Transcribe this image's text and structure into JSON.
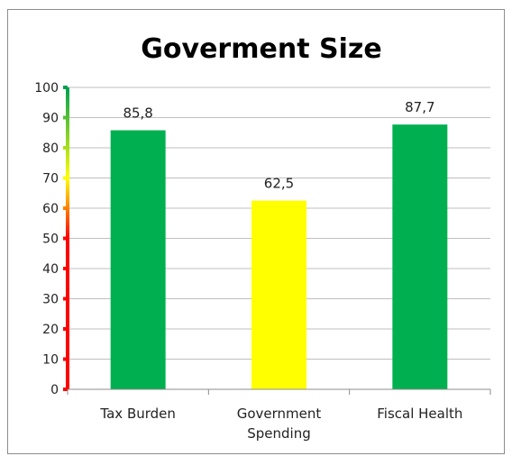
{
  "chart_data": {
    "type": "bar",
    "title": "Goverment Size",
    "xlabel": "",
    "ylabel": "",
    "categories": [
      [
        "Tax Burden"
      ],
      [
        "Government",
        "Spending"
      ],
      [
        "Fiscal Health"
      ]
    ],
    "values": [
      85.8,
      62.5,
      87.7
    ],
    "data_labels": [
      "85,8",
      "62,5",
      "87,7"
    ],
    "bar_colors": [
      "#00b050",
      "#ffff00",
      "#00b050"
    ],
    "ylim": [
      0,
      100
    ],
    "yticks": [
      0,
      10,
      20,
      30,
      40,
      50,
      60,
      70,
      80,
      90,
      100
    ],
    "grid": true,
    "legend": "none",
    "axis_gradient": [
      {
        "value": 0,
        "color": "#ff0000"
      },
      {
        "value": 50,
        "color": "#ff0000"
      },
      {
        "value": 70,
        "color": "#ffff00"
      },
      {
        "value": 100,
        "color": "#00a050"
      }
    ]
  }
}
